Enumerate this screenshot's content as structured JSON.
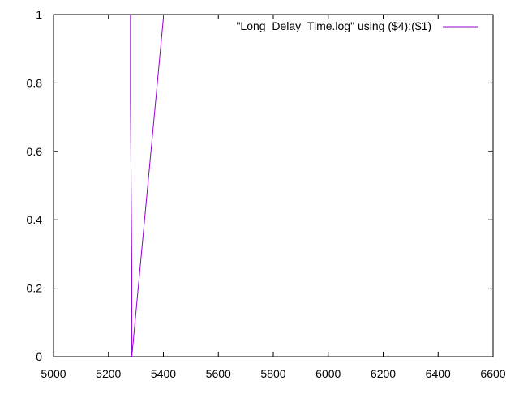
{
  "chart_data": {
    "type": "line",
    "title": "",
    "xlabel": "",
    "ylabel": "",
    "xlim": [
      5000,
      6600
    ],
    "ylim": [
      0,
      1
    ],
    "x_ticks": [
      5000,
      5200,
      5400,
      5600,
      5800,
      6000,
      6200,
      6400,
      6600
    ],
    "y_ticks": [
      0,
      0.2,
      0.4,
      0.6,
      0.8,
      1
    ],
    "x_tick_labels": [
      "5000",
      "5200",
      "5400",
      "5600",
      "5800",
      "6000",
      "6200",
      "6400",
      "6600"
    ],
    "y_tick_labels": [
      "0",
      "0.2",
      "0.4",
      "0.6",
      "0.8",
      "1"
    ],
    "grid": false,
    "legend_position": "top-right",
    "series": [
      {
        "name": "\"Long_Delay_Time.log\" using ($4):($1)",
        "color": "#9400d3",
        "x": [
          5280,
          5280,
          5285,
          5285,
          5400,
          5400
        ],
        "y": [
          1.0,
          0.75,
          0.25,
          0.0,
          0.99,
          1.0
        ]
      }
    ]
  }
}
